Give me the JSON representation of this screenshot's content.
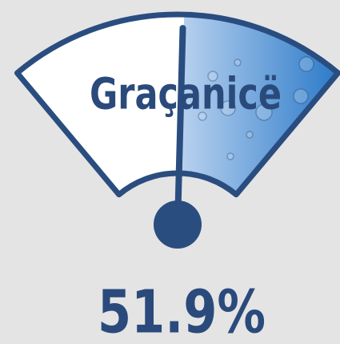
{
  "chart_data": {
    "type": "gauge",
    "title": "Graçanicë",
    "values": [
      51.9
    ],
    "value_labels": [
      "51.9%"
    ],
    "ylim": [
      0,
      100
    ],
    "color": "#2a5fae"
  }
}
